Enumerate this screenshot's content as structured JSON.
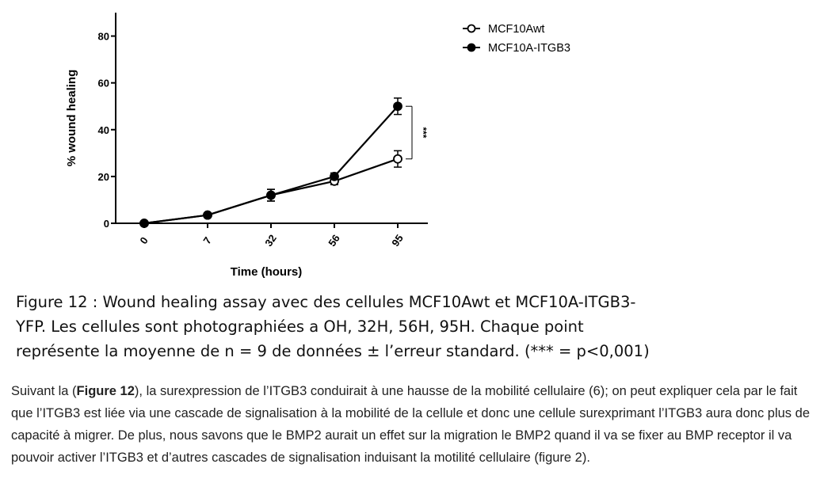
{
  "chart_data": {
    "type": "line",
    "categories": [
      "0",
      "7",
      "32",
      "56",
      "95"
    ],
    "xlabel": "Time (hours)",
    "ylabel": "% wound healing",
    "ylim": [
      0,
      90
    ],
    "yticks": [
      0,
      20,
      40,
      60,
      80
    ],
    "legend_position": "top-right",
    "grid": false,
    "series": [
      {
        "name": "MCF10Awt",
        "marker": "open-circle",
        "values": [
          0,
          3.5,
          12,
          18,
          27.5
        ],
        "errors": [
          0.5,
          0.8,
          2.5,
          1.5,
          3.5
        ]
      },
      {
        "name": "MCF10A-ITGB3",
        "marker": "filled-circle",
        "values": [
          0,
          3.5,
          12,
          20,
          50
        ],
        "errors": [
          0.5,
          0.8,
          2.5,
          1.5,
          3.5
        ]
      }
    ],
    "significance": {
      "label": "***",
      "between_values": [
        50,
        27.5
      ]
    }
  },
  "caption": {
    "lines": [
      "Figure 12 : Wound healing assay avec des cellules MCF10Awt et MCF10A-ITGB3-",
      "YFP. Les cellules sont photographiées a OH, 32H, 56H, 95H. Chaque point",
      "représente la moyenne de n = 9 de données ± l’erreur standard. (*** = p<0,001)"
    ]
  },
  "body": {
    "prefix": "Suivant la (",
    "figure_ref": "Figure 12",
    "text": "), la surexpression de l’ITGB3 conduirait à une hausse de la mobilité cellulaire (6); on peut expliquer cela par le fait que l’ITGB3 est liée via une cascade de signalisation à la mobilité de la cellule et donc une cellule surexprimant l’ITGB3 aura donc plus de capacité à migrer. De plus, nous savons que le BMP2 aurait un effet sur la migration le BMP2 quand il va se fixer au BMP receptor il va pouvoir activer l’ITGB3 et d’autres cascades de signalisation induisant la motilité cellulaire (figure 2)."
  }
}
